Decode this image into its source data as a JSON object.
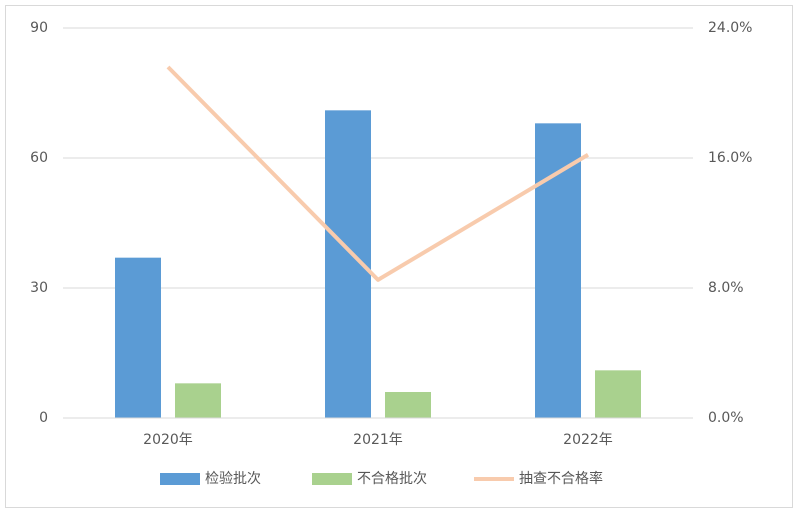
{
  "chart_data": {
    "type": "bar",
    "categories": [
      "2020年",
      "2021年",
      "2022年"
    ],
    "series": [
      {
        "name": "检验批次",
        "color": "#5b9bd5",
        "values": [
          37,
          71,
          68
        ]
      },
      {
        "name": "不合格批次",
        "color": "#a9d18e",
        "values": [
          8,
          6,
          11
        ]
      },
      {
        "name": "抽查不合格率",
        "color": "#f8cbad",
        "type": "line",
        "axis": "y2",
        "values": [
          21.6,
          8.5,
          16.2
        ]
      }
    ],
    "ylim": [
      0,
      90
    ],
    "yticks": [
      0,
      30,
      60,
      90
    ],
    "y2lim": [
      0,
      24
    ],
    "y2ticks": [
      {
        "value": 0,
        "label": "0.0%"
      },
      {
        "value": 8,
        "label": "8.0%"
      },
      {
        "value": 16,
        "label": "16.0%"
      },
      {
        "value": 24,
        "label": "24.0%"
      }
    ],
    "grid": true,
    "legend": "bottom"
  }
}
